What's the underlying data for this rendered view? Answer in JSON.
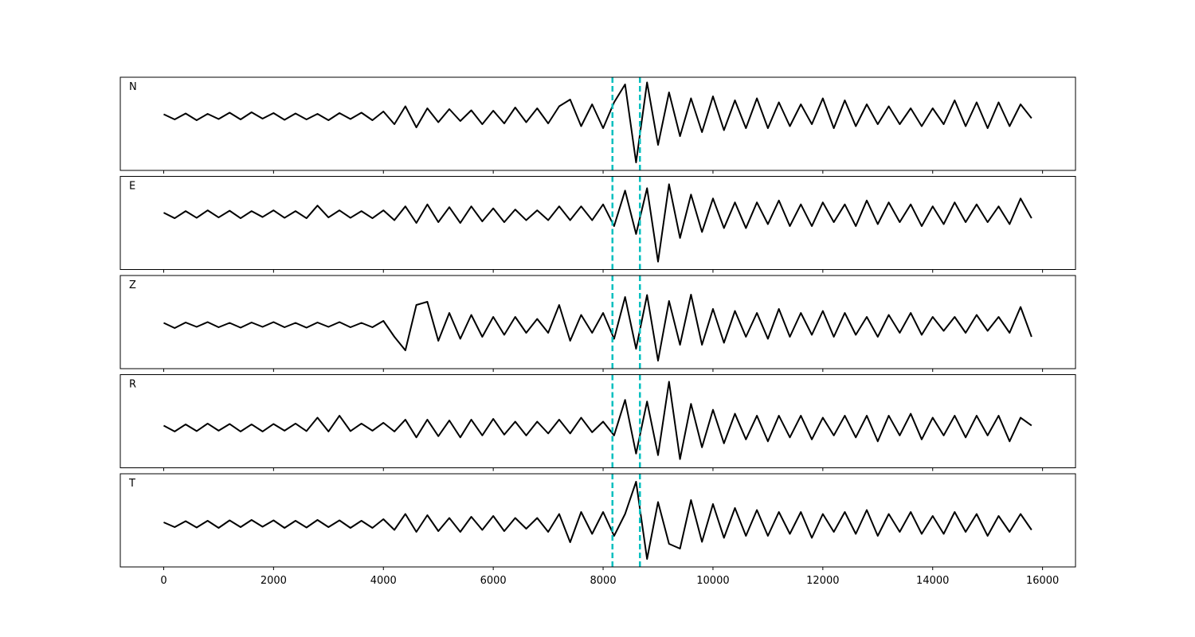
{
  "chart_data": {
    "type": "line",
    "layout": "stacked",
    "x": [
      0,
      200,
      400,
      600,
      800,
      1000,
      1200,
      1400,
      1600,
      1800,
      2000,
      2200,
      2400,
      2600,
      2800,
      3000,
      3200,
      3400,
      3600,
      3800,
      4000,
      4200,
      4400,
      4600,
      4800,
      5000,
      5200,
      5400,
      5600,
      5800,
      6000,
      6200,
      6400,
      6600,
      6800,
      7000,
      7200,
      7400,
      7600,
      7800,
      8000,
      8200,
      8400,
      8600,
      8800,
      9000,
      9200,
      9400,
      9600,
      9800,
      10000,
      10200,
      10400,
      10600,
      10800,
      11000,
      11200,
      11400,
      11600,
      11800,
      12000,
      12200,
      12400,
      12600,
      12800,
      13000,
      13200,
      13400,
      13600,
      13800,
      14000,
      14200,
      14400,
      14600,
      14800,
      15000,
      15200,
      15400,
      15600,
      15800
    ],
    "xlim": [
      -790,
      16600
    ],
    "xticks": [
      0,
      2000,
      4000,
      6000,
      8000,
      10000,
      12000,
      14000,
      16000
    ],
    "vlines": [
      8170,
      8670
    ],
    "vline_color": "#00bfbf",
    "series": [
      {
        "name": "N",
        "color": "#000000",
        "ylim": [
          -1.36,
          0.98
        ],
        "values": [
          0.05,
          -0.08,
          0.07,
          -0.1,
          0.06,
          -0.07,
          0.09,
          -0.08,
          0.1,
          -0.06,
          0.08,
          -0.09,
          0.07,
          -0.08,
          0.06,
          -0.1,
          0.08,
          -0.07,
          0.09,
          -0.1,
          0.12,
          -0.2,
          0.25,
          -0.28,
          0.2,
          -0.15,
          0.18,
          -0.12,
          0.15,
          -0.2,
          0.14,
          -0.18,
          0.22,
          -0.15,
          0.2,
          -0.18,
          0.25,
          0.42,
          -0.25,
          0.3,
          -0.3,
          0.35,
          0.8,
          -1.16,
          0.85,
          -0.72,
          0.6,
          -0.5,
          0.45,
          -0.4,
          0.5,
          -0.35,
          0.4,
          -0.3,
          0.45,
          -0.3,
          0.35,
          -0.25,
          0.3,
          -0.2,
          0.45,
          -0.3,
          0.4,
          -0.25,
          0.3,
          -0.2,
          0.25,
          -0.2,
          0.2,
          -0.25,
          0.2,
          -0.2,
          0.4,
          -0.25,
          0.35,
          -0.3,
          0.35,
          -0.25,
          0.3,
          -0.05
        ]
      },
      {
        "name": "E",
        "color": "#000000",
        "ylim": [
          -1.4,
          0.96
        ],
        "values": [
          0.04,
          -0.1,
          0.08,
          -0.09,
          0.1,
          -0.08,
          0.09,
          -0.1,
          0.08,
          -0.07,
          0.1,
          -0.09,
          0.08,
          -0.1,
          0.22,
          -0.08,
          0.1,
          -0.09,
          0.08,
          -0.1,
          0.1,
          -0.15,
          0.2,
          -0.22,
          0.25,
          -0.2,
          0.18,
          -0.22,
          0.2,
          -0.18,
          0.15,
          -0.2,
          0.12,
          -0.15,
          0.1,
          -0.15,
          0.2,
          -0.15,
          0.2,
          -0.15,
          0.25,
          -0.3,
          0.6,
          -0.5,
          0.66,
          -1.2,
          0.76,
          -0.6,
          0.5,
          -0.45,
          0.4,
          -0.35,
          0.3,
          -0.35,
          0.3,
          -0.25,
          0.35,
          -0.3,
          0.25,
          -0.3,
          0.3,
          -0.2,
          0.25,
          -0.3,
          0.35,
          -0.25,
          0.3,
          -0.2,
          0.25,
          -0.3,
          0.2,
          -0.25,
          0.3,
          -0.2,
          0.25,
          -0.2,
          0.2,
          -0.25,
          0.4,
          -0.1
        ]
      },
      {
        "name": "Z",
        "color": "#000000",
        "ylim": [
          -1.1,
          1.24
        ],
        "values": [
          0.05,
          -0.08,
          0.06,
          -0.05,
          0.07,
          -0.06,
          0.05,
          -0.07,
          0.06,
          -0.05,
          0.07,
          -0.06,
          0.05,
          -0.07,
          0.06,
          -0.05,
          0.07,
          -0.06,
          0.05,
          -0.06,
          0.1,
          -0.3,
          -0.64,
          0.5,
          0.58,
          -0.4,
          0.3,
          -0.35,
          0.25,
          -0.3,
          0.2,
          -0.25,
          0.2,
          -0.2,
          0.15,
          -0.2,
          0.5,
          -0.4,
          0.25,
          -0.2,
          0.3,
          -0.35,
          0.7,
          -0.6,
          0.75,
          -0.9,
          0.6,
          -0.5,
          0.76,
          -0.5,
          0.4,
          -0.45,
          0.35,
          -0.3,
          0.3,
          -0.35,
          0.4,
          -0.3,
          0.3,
          -0.25,
          0.35,
          -0.3,
          0.3,
          -0.25,
          0.2,
          -0.3,
          0.25,
          -0.2,
          0.3,
          -0.25,
          0.2,
          -0.15,
          0.2,
          -0.2,
          0.25,
          -0.15,
          0.2,
          -0.2,
          0.45,
          -0.3
        ]
      },
      {
        "name": "R",
        "color": "#000000",
        "ylim": [
          -1.02,
          1.34
        ],
        "values": [
          0.05,
          -0.1,
          0.08,
          -0.09,
          0.1,
          -0.08,
          0.09,
          -0.1,
          0.08,
          -0.1,
          0.09,
          -0.08,
          0.1,
          -0.09,
          0.25,
          -0.1,
          0.3,
          -0.09,
          0.1,
          -0.08,
          0.12,
          -0.1,
          0.2,
          -0.25,
          0.2,
          -0.22,
          0.18,
          -0.25,
          0.2,
          -0.2,
          0.22,
          -0.18,
          0.15,
          -0.2,
          0.15,
          -0.15,
          0.2,
          -0.15,
          0.25,
          -0.12,
          0.15,
          -0.2,
          0.7,
          -0.66,
          0.66,
          -0.7,
          1.16,
          -0.8,
          0.6,
          -0.5,
          0.45,
          -0.4,
          0.35,
          -0.3,
          0.3,
          -0.35,
          0.3,
          -0.25,
          0.3,
          -0.3,
          0.25,
          -0.2,
          0.3,
          -0.25,
          0.3,
          -0.35,
          0.3,
          -0.2,
          0.35,
          -0.3,
          0.25,
          -0.2,
          0.3,
          -0.25,
          0.3,
          -0.2,
          0.3,
          -0.35,
          0.25,
          0.05
        ]
      },
      {
        "name": "T",
        "color": "#000000",
        "ylim": [
          -1.08,
          1.26
        ],
        "values": [
          0.04,
          -0.08,
          0.07,
          -0.09,
          0.08,
          -0.1,
          0.09,
          -0.08,
          0.1,
          -0.07,
          0.09,
          -0.1,
          0.08,
          -0.09,
          0.1,
          -0.08,
          0.09,
          -0.1,
          0.08,
          -0.1,
          0.12,
          -0.15,
          0.25,
          -0.2,
          0.22,
          -0.18,
          0.15,
          -0.2,
          0.18,
          -0.15,
          0.2,
          -0.18,
          0.15,
          -0.12,
          0.15,
          -0.2,
          0.25,
          -0.46,
          0.3,
          -0.25,
          0.3,
          -0.3,
          0.25,
          1.06,
          -0.88,
          0.55,
          -0.5,
          -0.62,
          0.6,
          -0.45,
          0.5,
          -0.35,
          0.4,
          -0.3,
          0.35,
          -0.3,
          0.3,
          -0.25,
          0.3,
          -0.35,
          0.25,
          -0.2,
          0.3,
          -0.25,
          0.35,
          -0.3,
          0.25,
          -0.2,
          0.3,
          -0.25,
          0.2,
          -0.25,
          0.3,
          -0.2,
          0.25,
          -0.3,
          0.2,
          -0.2,
          0.25,
          -0.15
        ]
      }
    ]
  }
}
